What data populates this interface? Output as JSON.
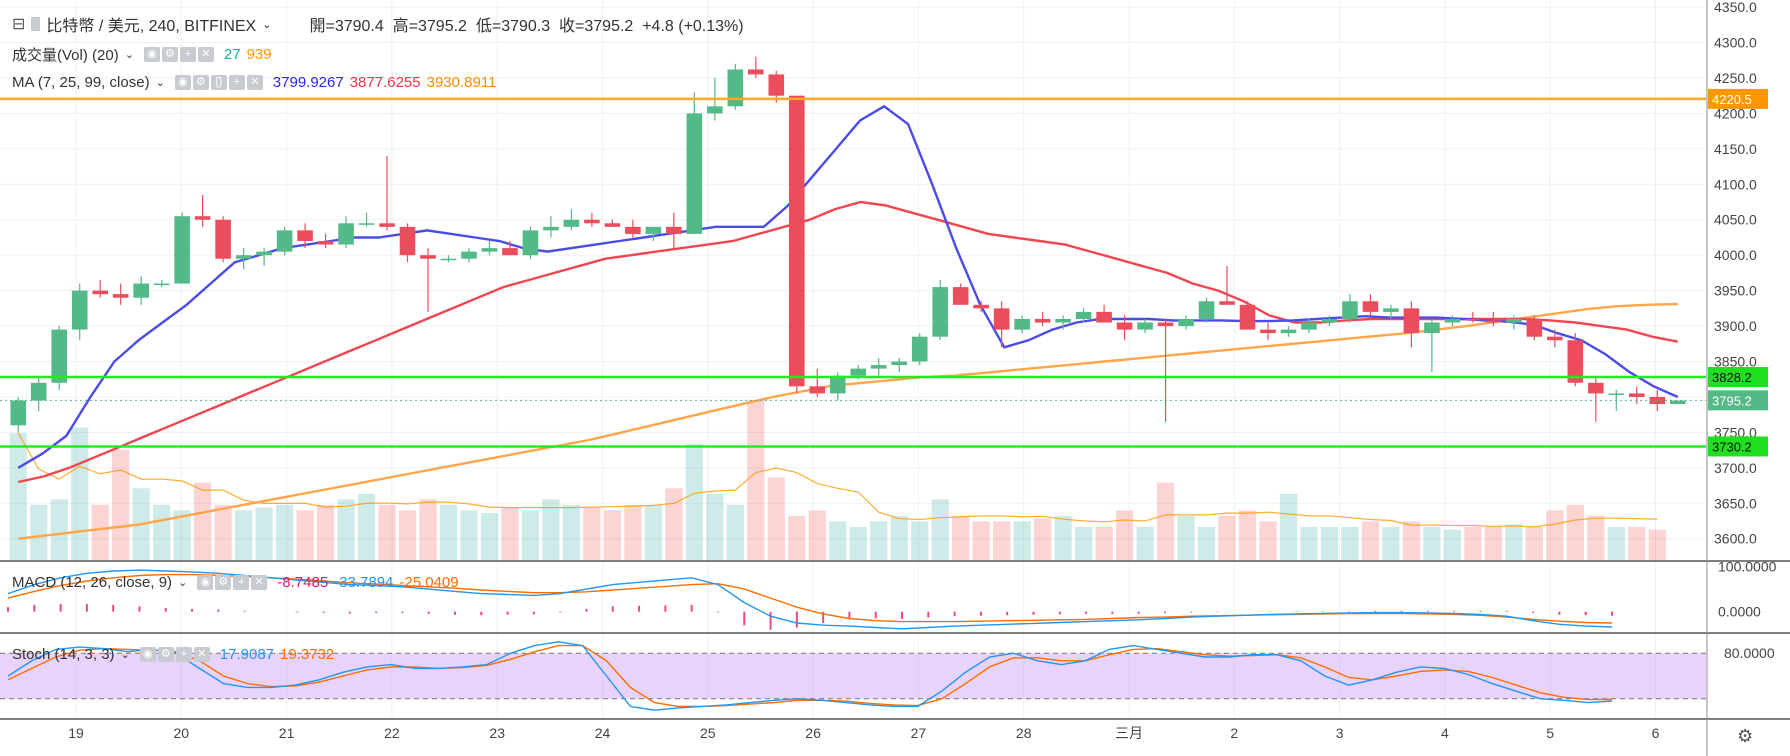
{
  "header": {
    "symbol_title": "比特幣 / 美元, 240, BITFINEX",
    "ohlc": {
      "open_label": "開",
      "open": "3790.4",
      "high_label": "高",
      "high": "3795.2",
      "low_label": "低",
      "low": "3790.3",
      "close_label": "收",
      "close": "3795.2",
      "change": "+4.8 (+0.13%)"
    }
  },
  "volume_legend": {
    "title": "成交量(Vol) (20)",
    "v1": "27",
    "v2": "939",
    "colors": [
      "#26a69a",
      "#ff9800"
    ]
  },
  "ma_legend": {
    "title": "MA (7, 25, 99, close)",
    "v1": "3799.9267",
    "v2": "3877.6255",
    "v3": "3930.8911",
    "colors": [
      "#2929e8",
      "#f23645",
      "#ff8c00"
    ]
  },
  "macd_legend": {
    "title": "MACD (12, 26, close, 9)",
    "v1": "-8.7485",
    "v2": "-33.7894",
    "v3": "-25.0409",
    "colors": [
      "#e91e63",
      "#2196f3",
      "#ff6d00"
    ]
  },
  "stoch_legend": {
    "title": "Stoch (14, 3, 3)",
    "v1": "17.9087",
    "v2": "19.3732",
    "colors": [
      "#2196f3",
      "#ff6d00"
    ]
  },
  "chart_data": [
    {
      "type": "candlestick",
      "y_ticks": [
        "4350.0",
        "4300.0",
        "4250.0",
        "4200.0",
        "4150.0",
        "4100.0",
        "4050.0",
        "4000.0",
        "3950.0",
        "3900.0",
        "3850.0",
        "3800.0",
        "3750.0",
        "3700.0",
        "3650.0",
        "3600.0"
      ],
      "ylim": [
        3570,
        4360
      ],
      "x_ticks": [
        "19",
        "20",
        "21",
        "22",
        "23",
        "24",
        "25",
        "26",
        "27",
        "28",
        "三月",
        "2",
        "3",
        "4",
        "5",
        "6"
      ],
      "candles": [
        [
          3760,
          3800,
          3750,
          3795
        ],
        [
          3795,
          3830,
          3780,
          3820
        ],
        [
          3820,
          3900,
          3810,
          3895
        ],
        [
          3895,
          3960,
          3880,
          3950
        ],
        [
          3950,
          3965,
          3940,
          3945
        ],
        [
          3945,
          3960,
          3930,
          3940
        ],
        [
          3940,
          3970,
          3930,
          3960
        ],
        [
          3960,
          3965,
          3955,
          3960
        ],
        [
          3960,
          4060,
          3960,
          4055
        ],
        [
          4055,
          4085,
          4040,
          4050
        ],
        [
          4050,
          4055,
          3990,
          3995
        ],
        [
          3995,
          4010,
          3980,
          4000
        ],
        [
          4000,
          4010,
          3985,
          4005
        ],
        [
          4005,
          4040,
          4000,
          4035
        ],
        [
          4035,
          4045,
          4010,
          4020
        ],
        [
          4020,
          4030,
          4010,
          4015
        ],
        [
          4015,
          4055,
          4010,
          4045
        ],
        [
          4045,
          4060,
          4040,
          4045
        ],
        [
          4045,
          4140,
          4035,
          4040
        ],
        [
          4040,
          4045,
          3990,
          4000
        ],
        [
          4000,
          4010,
          3920,
          3995
        ],
        [
          3995,
          4000,
          3990,
          3995
        ],
        [
          3995,
          4010,
          3990,
          4005
        ],
        [
          4005,
          4020,
          4000,
          4010
        ],
        [
          4010,
          4020,
          4000,
          4000
        ],
        [
          4000,
          4040,
          3995,
          4035
        ],
        [
          4035,
          4055,
          4025,
          4040
        ],
        [
          4040,
          4065,
          4035,
          4050
        ],
        [
          4050,
          4060,
          4040,
          4045
        ],
        [
          4045,
          4050,
          4040,
          4040
        ],
        [
          4040,
          4050,
          4025,
          4030
        ],
        [
          4030,
          4040,
          4020,
          4040
        ],
        [
          4040,
          4060,
          4010,
          4030
        ],
        [
          4030,
          4230,
          4030,
          4200
        ],
        [
          4200,
          4250,
          4190,
          4210
        ],
        [
          4210,
          4270,
          4205,
          4262
        ],
        [
          4262,
          4280,
          4250,
          4255
        ],
        [
          4255,
          4260,
          4215,
          4225
        ],
        [
          4225,
          4225,
          3805,
          3815
        ],
        [
          3815,
          3840,
          3800,
          3805
        ],
        [
          3805,
          3835,
          3795,
          3830
        ],
        [
          3830,
          3845,
          3825,
          3840
        ],
        [
          3840,
          3855,
          3830,
          3845
        ],
        [
          3845,
          3855,
          3835,
          3850
        ],
        [
          3850,
          3890,
          3845,
          3885
        ],
        [
          3885,
          3965,
          3880,
          3955
        ],
        [
          3955,
          3960,
          3935,
          3930
        ],
        [
          3930,
          3935,
          3920,
          3925
        ],
        [
          3925,
          3935,
          3870,
          3895
        ],
        [
          3895,
          3915,
          3890,
          3910
        ],
        [
          3910,
          3920,
          3900,
          3905
        ],
        [
          3905,
          3915,
          3895,
          3910
        ],
        [
          3910,
          3925,
          3905,
          3920
        ],
        [
          3920,
          3930,
          3905,
          3905
        ],
        [
          3905,
          3915,
          3880,
          3895
        ],
        [
          3895,
          3910,
          3890,
          3905
        ],
        [
          3905,
          3910,
          3765,
          3900
        ],
        [
          3900,
          3915,
          3895,
          3910
        ],
        [
          3910,
          3940,
          3905,
          3935
        ],
        [
          3935,
          3985,
          3930,
          3930
        ],
        [
          3930,
          3935,
          3895,
          3895
        ],
        [
          3895,
          3905,
          3880,
          3890
        ],
        [
          3890,
          3900,
          3885,
          3895
        ],
        [
          3895,
          3910,
          3890,
          3905
        ],
        [
          3905,
          3915,
          3900,
          3910
        ],
        [
          3910,
          3945,
          3905,
          3935
        ],
        [
          3935,
          3945,
          3915,
          3920
        ],
        [
          3920,
          3930,
          3910,
          3925
        ],
        [
          3925,
          3935,
          3870,
          3890
        ],
        [
          3890,
          3910,
          3835,
          3905
        ],
        [
          3905,
          3915,
          3900,
          3910
        ],
        [
          3910,
          3920,
          3905,
          3908
        ],
        [
          3908,
          3920,
          3900,
          3905
        ],
        [
          3905,
          3915,
          3895,
          3910
        ],
        [
          3910,
          3915,
          3880,
          3885
        ],
        [
          3885,
          3895,
          3870,
          3880
        ],
        [
          3880,
          3890,
          3815,
          3820
        ],
        [
          3820,
          3830,
          3765,
          3805
        ],
        [
          3805,
          3810,
          3780,
          3805
        ],
        [
          3805,
          3815,
          3790,
          3800
        ],
        [
          3800,
          3810,
          3780,
          3790
        ],
        [
          3790,
          3795,
          3790,
          3795
        ]
      ],
      "ma_7": [
        3700,
        3720,
        3745,
        3800,
        3850,
        3880,
        3905,
        3930,
        3960,
        3990,
        4000,
        4010,
        4015,
        4020,
        4025,
        4025,
        4030,
        4035,
        4030,
        4025,
        4020,
        4010,
        4005,
        4010,
        4015,
        4020,
        4025,
        4030,
        4035,
        4040,
        4040,
        4040,
        4070,
        4110,
        4150,
        4190,
        4210,
        4185,
        4100,
        4010,
        3930,
        3870,
        3880,
        3895,
        3905,
        3910,
        3910,
        3910,
        3908,
        3908,
        3908,
        3907,
        3907,
        3908,
        3910,
        3912,
        3914,
        3912,
        3912,
        3912,
        3910,
        3908,
        3906,
        3902,
        3890,
        3880,
        3860,
        3835,
        3815,
        3800
      ],
      "ma_25": [
        3680,
        3688,
        3700,
        3715,
        3730,
        3745,
        3760,
        3775,
        3790,
        3805,
        3820,
        3835,
        3850,
        3865,
        3880,
        3895,
        3910,
        3925,
        3940,
        3955,
        3965,
        3975,
        3985,
        3995,
        4000,
        4005,
        4010,
        4015,
        4020,
        4030,
        4040,
        4050,
        4065,
        4075,
        4070,
        4060,
        4050,
        4040,
        4030,
        4025,
        4020,
        4015,
        4005,
        3995,
        3985,
        3975,
        3960,
        3950,
        3935,
        3915,
        3905,
        3905,
        3908,
        3910,
        3910,
        3910,
        3910,
        3910,
        3910,
        3910,
        3908,
        3905,
        3900,
        3895,
        3885,
        3878
      ],
      "ma_99": [
        3600,
        3605,
        3610,
        3615,
        3620,
        3628,
        3636,
        3644,
        3652,
        3660,
        3668,
        3676,
        3684,
        3692,
        3700,
        3708,
        3716,
        3724,
        3732,
        3740,
        3750,
        3760,
        3770,
        3780,
        3790,
        3800,
        3808,
        3816,
        3820,
        3824,
        3828,
        3830,
        3834,
        3838,
        3842,
        3846,
        3850,
        3854,
        3858,
        3862,
        3866,
        3870,
        3874,
        3878,
        3882,
        3886,
        3890,
        3895,
        3900,
        3906,
        3912,
        3918,
        3924,
        3928,
        3930,
        3931
      ],
      "volume": [
        230,
        100,
        110,
        240,
        100,
        200,
        130,
        100,
        90,
        140,
        100,
        90,
        95,
        100,
        90,
        100,
        110,
        120,
        100,
        90,
        110,
        100,
        90,
        85,
        95,
        90,
        110,
        100,
        95,
        90,
        100,
        100,
        130,
        210,
        120,
        100,
        290,
        150,
        80,
        90,
        70,
        60,
        70,
        80,
        70,
        110,
        80,
        70,
        70,
        70,
        75,
        80,
        60,
        60,
        90,
        60,
        140,
        80,
        60,
        80,
        90,
        70,
        120,
        60,
        60,
        60,
        70,
        60,
        70,
        60,
        55,
        60,
        60,
        65,
        60,
        90,
        100,
        80,
        60,
        60,
        55
      ],
      "horizontal_levels": {
        "resistance": "4220.5",
        "support_top": "3828.2",
        "support_bottom": "3730.2",
        "last_price": "3795.2"
      }
    },
    {
      "type": "line",
      "name": "MACD (12, 26, close, 9)",
      "y_ticks": [
        "100.0000",
        "0.0000"
      ],
      "ylim": [
        -45,
        110
      ],
      "macd": [
        40,
        60,
        75,
        85,
        90,
        92,
        90,
        88,
        85,
        80,
        75,
        70,
        65,
        60,
        58,
        55,
        50,
        45,
        40,
        38,
        36,
        40,
        50,
        60,
        65,
        70,
        75,
        60,
        20,
        -10,
        -25,
        -30,
        -32,
        -35,
        -38,
        -35,
        -32,
        -30,
        -28,
        -26,
        -24,
        -22,
        -20,
        -18,
        -15,
        -12,
        -10,
        -8,
        -6,
        -5,
        -4,
        -3,
        -2,
        -2,
        -3,
        -4,
        -6,
        -10,
        -20,
        -28,
        -32,
        -34
      ],
      "signal": [
        30,
        45,
        58,
        68,
        75,
        80,
        82,
        82,
        80,
        78,
        75,
        72,
        68,
        64,
        61,
        58,
        55,
        52,
        48,
        45,
        42,
        42,
        44,
        48,
        52,
        56,
        60,
        62,
        50,
        30,
        10,
        -5,
        -15,
        -20,
        -22,
        -22,
        -22,
        -21,
        -20,
        -19,
        -18,
        -17,
        -15,
        -13,
        -12,
        -10,
        -9,
        -8,
        -7,
        -6,
        -5,
        -4,
        -4,
        -4,
        -5,
        -6,
        -8,
        -12,
        -17,
        -21,
        -24,
        -25
      ]
    },
    {
      "type": "line",
      "name": "Stoch (14, 3, 3)",
      "y_ticks": [
        "80.0000"
      ],
      "ylim": [
        0,
        100
      ],
      "k": [
        50,
        70,
        85,
        88,
        86,
        82,
        85,
        80,
        60,
        40,
        35,
        35,
        38,
        45,
        55,
        62,
        65,
        60,
        60,
        62,
        65,
        80,
        90,
        95,
        90,
        50,
        10,
        5,
        8,
        10,
        12,
        15,
        18,
        20,
        18,
        15,
        12,
        10,
        10,
        30,
        55,
        75,
        80,
        70,
        65,
        70,
        85,
        90,
        85,
        80,
        75,
        75,
        78,
        78,
        70,
        50,
        38,
        45,
        55,
        62,
        60,
        52,
        40,
        30,
        20,
        18,
        15,
        17
      ],
      "d": [
        45,
        60,
        75,
        84,
        86,
        85,
        84,
        82,
        70,
        50,
        40,
        36,
        37,
        42,
        50,
        58,
        62,
        62,
        60,
        61,
        64,
        72,
        82,
        90,
        90,
        70,
        35,
        15,
        10,
        10,
        11,
        13,
        15,
        18,
        18,
        17,
        14,
        12,
        11,
        20,
        40,
        62,
        74,
        74,
        70,
        70,
        78,
        85,
        86,
        82,
        78,
        76,
        77,
        78,
        74,
        62,
        48,
        45,
        50,
        56,
        58,
        56,
        48,
        38,
        28,
        22,
        19,
        19
      ]
    }
  ]
}
